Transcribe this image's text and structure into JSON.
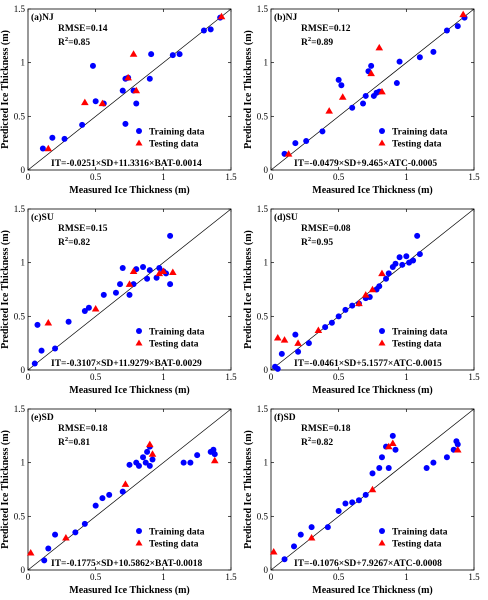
{
  "chart_data": [
    {
      "type": "scatter",
      "panel_label": "(a)NJ",
      "rmse": "RMSE=0.14",
      "r2_prefix": "R",
      "r2_sup": "2",
      "r2_value": "=0.85",
      "equation": "IT=-0.0251×SD+11.3316×BAT-0.0014",
      "xlabel": "Measured Ice Thickness (m)",
      "ylabel": "Predicted Ice Thickness (m)",
      "xlim": [
        0,
        1.5
      ],
      "ylim": [
        0,
        1.5
      ],
      "xticks": [
        "0",
        "0.5",
        "1",
        "1.5"
      ],
      "yticks": [
        "0",
        "0.5",
        "1",
        "1.5"
      ],
      "legend": [
        {
          "name": "Training data",
          "color": "#0000FF",
          "marker": "circle"
        },
        {
          "name": "Testing data",
          "color": "#FF0000",
          "marker": "triangle"
        }
      ],
      "series": [
        {
          "name": "Training data",
          "points": [
            [
              0.11,
              0.2
            ],
            [
              0.18,
              0.3
            ],
            [
              0.27,
              0.29
            ],
            [
              0.4,
              0.42
            ],
            [
              0.48,
              0.97
            ],
            [
              0.5,
              0.64
            ],
            [
              0.56,
              0.62
            ],
            [
              0.7,
              0.74
            ],
            [
              0.72,
              0.85
            ],
            [
              0.72,
              0.43
            ],
            [
              0.74,
              0.86
            ],
            [
              0.78,
              0.74
            ],
            [
              0.8,
              0.62
            ],
            [
              0.9,
              0.85
            ],
            [
              0.91,
              1.08
            ],
            [
              1.07,
              1.07
            ],
            [
              1.12,
              1.08
            ],
            [
              1.3,
              1.3
            ],
            [
              1.35,
              1.31
            ],
            [
              1.42,
              1.42
            ]
          ]
        },
        {
          "name": "Testing data",
          "points": [
            [
              0.15,
              0.2
            ],
            [
              0.42,
              0.63
            ],
            [
              0.55,
              0.62
            ],
            [
              0.74,
              0.86
            ],
            [
              0.78,
              1.08
            ],
            [
              0.8,
              0.74
            ],
            [
              1.43,
              1.43
            ]
          ]
        }
      ]
    },
    {
      "type": "scatter",
      "panel_label": "(b)NJ",
      "rmse": "RMSE=0.12",
      "r2_prefix": "R",
      "r2_sup": "2",
      "r2_value": "=0.89",
      "equation": "IT=-0.0479×SD+9.465×ATC-0.0005",
      "xlabel": "Measured Ice Thickness (m)",
      "ylabel": "Predicted Ice Thickness (m)",
      "xlim": [
        0,
        1.5
      ],
      "ylim": [
        0,
        1.5
      ],
      "xticks": [
        "0",
        "0.5",
        "1",
        "1.5"
      ],
      "yticks": [
        "0",
        "0.5",
        "1",
        "1.5"
      ],
      "legend": [
        {
          "name": "Training data",
          "color": "#0000FF",
          "marker": "circle"
        },
        {
          "name": "Testing data",
          "color": "#FF0000",
          "marker": "triangle"
        }
      ],
      "series": [
        {
          "name": "Training data",
          "points": [
            [
              0.1,
              0.15
            ],
            [
              0.18,
              0.25
            ],
            [
              0.26,
              0.27
            ],
            [
              0.38,
              0.36
            ],
            [
              0.5,
              0.84
            ],
            [
              0.52,
              0.79
            ],
            [
              0.6,
              0.58
            ],
            [
              0.68,
              0.62
            ],
            [
              0.7,
              0.69
            ],
            [
              0.72,
              0.92
            ],
            [
              0.74,
              0.97
            ],
            [
              0.76,
              0.69
            ],
            [
              0.78,
              0.72
            ],
            [
              0.8,
              0.73
            ],
            [
              0.93,
              0.81
            ],
            [
              0.95,
              1.01
            ],
            [
              1.1,
              1.05
            ],
            [
              1.2,
              1.1
            ],
            [
              1.3,
              1.3
            ],
            [
              1.38,
              1.34
            ],
            [
              1.43,
              1.42
            ]
          ]
        },
        {
          "name": "Testing data",
          "points": [
            [
              0.13,
              0.15
            ],
            [
              0.43,
              0.55
            ],
            [
              0.53,
              0.68
            ],
            [
              0.74,
              0.9
            ],
            [
              0.8,
              1.14
            ],
            [
              0.82,
              0.73
            ],
            [
              1.42,
              1.45
            ]
          ]
        }
      ]
    },
    {
      "type": "scatter",
      "panel_label": "(c)SU",
      "rmse": "RMSE=0.15",
      "r2_prefix": "R",
      "r2_sup": "2",
      "r2_value": "=0.82",
      "equation": "IT=-0.3107×SD+11.9279×BAT-0.0029",
      "xlabel": "Measured Ice Thickness (m)",
      "ylabel": "Predicted Ice Thickness (m)",
      "xlim": [
        0,
        1.5
      ],
      "ylim": [
        0,
        1.5
      ],
      "xticks": [
        "0",
        "0.5",
        "1",
        "1.5"
      ],
      "yticks": [
        "0",
        "0.5",
        "1",
        "1.5"
      ],
      "legend": [
        {
          "name": "Training data",
          "color": "#0000FF",
          "marker": "circle"
        },
        {
          "name": "Testing data",
          "color": "#FF0000",
          "marker": "triangle"
        }
      ],
      "series": [
        {
          "name": "Training data",
          "points": [
            [
              0.05,
              0.06
            ],
            [
              0.07,
              0.42
            ],
            [
              0.1,
              0.18
            ],
            [
              0.2,
              0.2
            ],
            [
              0.3,
              0.45
            ],
            [
              0.42,
              0.55
            ],
            [
              0.45,
              0.58
            ],
            [
              0.56,
              0.7
            ],
            [
              0.65,
              0.72
            ],
            [
              0.68,
              0.8
            ],
            [
              0.7,
              0.95
            ],
            [
              0.75,
              0.7
            ],
            [
              0.78,
              0.8
            ],
            [
              0.8,
              0.94
            ],
            [
              0.85,
              0.96
            ],
            [
              0.88,
              0.85
            ],
            [
              0.9,
              0.93
            ],
            [
              0.95,
              0.86
            ],
            [
              0.97,
              0.95
            ],
            [
              1.0,
              0.92
            ],
            [
              1.02,
              0.9
            ],
            [
              1.05,
              1.25
            ],
            [
              1.05,
              0.8
            ]
          ]
        },
        {
          "name": "Testing data",
          "points": [
            [
              0.15,
              0.44
            ],
            [
              0.5,
              0.57
            ],
            [
              0.75,
              0.8
            ],
            [
              0.78,
              0.92
            ],
            [
              0.97,
              0.9
            ],
            [
              1.0,
              0.92
            ],
            [
              1.07,
              0.91
            ]
          ]
        }
      ]
    },
    {
      "type": "scatter",
      "panel_label": "(d)SU",
      "rmse": "RMSE=0.08",
      "r2_prefix": "R",
      "r2_sup": "2",
      "r2_value": "=0.95",
      "equation": "IT=-0.0461×SD+5.1577×ATC-0.0015",
      "xlabel": "Measured Ice Thickness (m)",
      "ylabel": "Predicted Ice Thickness (m)",
      "xlim": [
        0,
        1.5
      ],
      "ylim": [
        0,
        1.5
      ],
      "xticks": [
        "0",
        "0.5",
        "1",
        "1.5"
      ],
      "yticks": [
        "0",
        "0.5",
        "1",
        "1.5"
      ],
      "legend": [
        {
          "name": "Training data",
          "color": "#0000FF",
          "marker": "circle"
        },
        {
          "name": "Testing data",
          "color": "#FF0000",
          "marker": "triangle"
        }
      ],
      "series": [
        {
          "name": "Training data",
          "points": [
            [
              0.03,
              0.03
            ],
            [
              0.05,
              0.01
            ],
            [
              0.08,
              0.15
            ],
            [
              0.18,
              0.33
            ],
            [
              0.2,
              0.17
            ],
            [
              0.28,
              0.25
            ],
            [
              0.4,
              0.4
            ],
            [
              0.45,
              0.44
            ],
            [
              0.5,
              0.5
            ],
            [
              0.55,
              0.56
            ],
            [
              0.6,
              0.6
            ],
            [
              0.65,
              0.62
            ],
            [
              0.7,
              0.67
            ],
            [
              0.73,
              0.68
            ],
            [
              0.78,
              0.75
            ],
            [
              0.8,
              0.78
            ],
            [
              0.85,
              0.85
            ],
            [
              0.87,
              0.9
            ],
            [
              0.9,
              0.96
            ],
            [
              0.92,
              0.99
            ],
            [
              0.95,
              1.05
            ],
            [
              0.97,
              0.98
            ],
            [
              1.0,
              1.06
            ],
            [
              1.02,
              1.0
            ],
            [
              1.05,
              1.02
            ],
            [
              1.08,
              1.25
            ],
            [
              1.1,
              1.08
            ]
          ]
        },
        {
          "name": "Testing data",
          "points": [
            [
              0.05,
              0.3
            ],
            [
              0.1,
              0.28
            ],
            [
              0.2,
              0.25
            ],
            [
              0.35,
              0.37
            ],
            [
              0.65,
              0.62
            ],
            [
              0.7,
              0.7
            ],
            [
              0.75,
              0.75
            ],
            [
              0.82,
              0.9
            ]
          ]
        }
      ]
    },
    {
      "type": "scatter",
      "panel_label": "(e)SD",
      "rmse": "RMSE=0.18",
      "r2_prefix": "R",
      "r2_sup": "2",
      "r2_value": "=0.81",
      "equation": "IT=-0.1775×SD+10.5862×BAT-0.0018",
      "xlabel": "Measured Ice Thickness (m)",
      "ylabel": "Predicted Ice Thickness (m)",
      "xlim": [
        0,
        1.5
      ],
      "ylim": [
        0,
        1.5
      ],
      "xticks": [
        "0",
        "0.5",
        "1",
        "1.5"
      ],
      "yticks": [
        "0",
        "0.5",
        "1",
        "1.5"
      ],
      "legend": [
        {
          "name": "Training data",
          "color": "#0000FF",
          "marker": "circle"
        },
        {
          "name": "Testing data",
          "color": "#FF0000",
          "marker": "triangle"
        }
      ],
      "series": [
        {
          "name": "Training data",
          "points": [
            [
              0.12,
              0.09
            ],
            [
              0.15,
              0.2
            ],
            [
              0.2,
              0.33
            ],
            [
              0.35,
              0.35
            ],
            [
              0.42,
              0.43
            ],
            [
              0.5,
              0.6
            ],
            [
              0.55,
              0.67
            ],
            [
              0.6,
              0.7
            ],
            [
              0.7,
              0.73
            ],
            [
              0.75,
              0.98
            ],
            [
              0.8,
              1.0
            ],
            [
              0.82,
              0.97
            ],
            [
              0.85,
              1.05
            ],
            [
              0.87,
              1.0
            ],
            [
              0.88,
              1.1
            ],
            [
              0.9,
              1.15
            ],
            [
              0.9,
              0.97
            ],
            [
              0.92,
              1.03
            ],
            [
              1.15,
              1.0
            ],
            [
              1.2,
              1.0
            ],
            [
              1.25,
              1.07
            ],
            [
              1.35,
              1.1
            ],
            [
              1.37,
              1.12
            ],
            [
              1.38,
              1.08
            ]
          ]
        },
        {
          "name": "Testing data",
          "points": [
            [
              0.02,
              0.16
            ],
            [
              0.28,
              0.3
            ],
            [
              0.72,
              0.8
            ],
            [
              0.9,
              1.17
            ],
            [
              0.92,
              1.08
            ],
            [
              1.38,
              1.02
            ]
          ]
        }
      ]
    },
    {
      "type": "scatter",
      "panel_label": "(f)SD",
      "rmse": "RMSE=0.18",
      "r2_prefix": "R",
      "r2_sup": "2",
      "r2_value": "=0.82",
      "equation": "IT=-0.1076×SD+7.9267×ATC-0.0008",
      "xlabel": "Measured Ice Thickness (m)",
      "ylabel": "Predicted Ice Thickness (m)",
      "xlim": [
        0,
        1.5
      ],
      "ylim": [
        0,
        1.5
      ],
      "xticks": [
        "0",
        "0.5",
        "1",
        "1.5"
      ],
      "yticks": [
        "0",
        "0.5",
        "1",
        "1.5"
      ],
      "legend": [
        {
          "name": "Training data",
          "color": "#0000FF",
          "marker": "circle"
        },
        {
          "name": "Testing data",
          "color": "#FF0000",
          "marker": "triangle"
        }
      ],
      "series": [
        {
          "name": "Training data",
          "points": [
            [
              0.1,
              0.1
            ],
            [
              0.17,
              0.22
            ],
            [
              0.22,
              0.33
            ],
            [
              0.3,
              0.4
            ],
            [
              0.42,
              0.4
            ],
            [
              0.5,
              0.55
            ],
            [
              0.55,
              0.62
            ],
            [
              0.6,
              0.63
            ],
            [
              0.65,
              0.65
            ],
            [
              0.7,
              0.7
            ],
            [
              0.75,
              0.9
            ],
            [
              0.8,
              0.95
            ],
            [
              0.82,
              1.05
            ],
            [
              0.85,
              1.15
            ],
            [
              0.87,
              0.95
            ],
            [
              0.9,
              1.25
            ],
            [
              0.92,
              1.12
            ],
            [
              1.15,
              0.95
            ],
            [
              1.2,
              1.0
            ],
            [
              1.3,
              1.05
            ],
            [
              1.35,
              1.12
            ],
            [
              1.37,
              1.2
            ],
            [
              1.38,
              1.17
            ]
          ]
        },
        {
          "name": "Testing data",
          "points": [
            [
              0.02,
              0.17
            ],
            [
              0.3,
              0.3
            ],
            [
              0.75,
              0.75
            ],
            [
              0.87,
              1.15
            ],
            [
              0.9,
              1.18
            ],
            [
              1.38,
              1.12
            ]
          ]
        }
      ]
    }
  ]
}
